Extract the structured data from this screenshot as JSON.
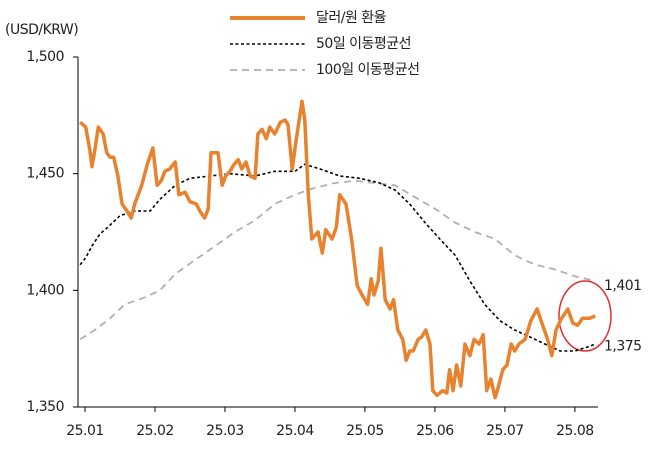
{
  "chart_data": {
    "type": "line",
    "y_label": "(USD/KRW)",
    "legend": "top",
    "xlim": [
      -0.1,
      7.33
    ],
    "ylim": [
      1350,
      1500
    ],
    "yticks": [
      {
        "value": 1350,
        "label": "1,350"
      },
      {
        "value": 1400,
        "label": "1,400"
      },
      {
        "value": 1450,
        "label": "1,450"
      },
      {
        "value": 1500,
        "label": "1,500"
      }
    ],
    "xticks": [
      {
        "value": 0,
        "label": "25.01"
      },
      {
        "value": 1,
        "label": "25.02"
      },
      {
        "value": 2,
        "label": "25.03"
      },
      {
        "value": 3,
        "label": "25.04"
      },
      {
        "value": 4,
        "label": "25.05"
      },
      {
        "value": 5,
        "label": "25.06"
      },
      {
        "value": 6,
        "label": "25.07"
      },
      {
        "value": 7,
        "label": "25.08"
      }
    ],
    "series": [
      {
        "name": "달러/원 환율",
        "color": "#e8822e",
        "line_style": "solid",
        "x": [
          -0.07,
          0.01,
          0.07,
          0.1,
          0.14,
          0.19,
          0.26,
          0.31,
          0.36,
          0.41,
          0.47,
          0.53,
          0.6,
          0.66,
          0.71,
          0.81,
          0.89,
          0.97,
          1.03,
          1.09,
          1.14,
          1.21,
          1.29,
          1.34,
          1.43,
          1.5,
          1.59,
          1.64,
          1.71,
          1.76,
          1.8,
          1.9,
          1.96,
          2.01,
          2.07,
          2.13,
          2.19,
          2.24,
          2.3,
          2.36,
          2.43,
          2.47,
          2.53,
          2.59,
          2.64,
          2.71,
          2.79,
          2.86,
          2.9,
          2.96,
          3.01,
          3.1,
          3.14,
          3.19,
          3.24,
          3.33,
          3.39,
          3.44,
          3.53,
          3.59,
          3.64,
          3.73,
          3.81,
          3.89,
          3.96,
          4.04,
          4.09,
          4.13,
          4.19,
          4.23,
          4.29,
          4.36,
          4.41,
          4.47,
          4.54,
          4.59,
          4.64,
          4.69,
          4.76,
          4.81,
          4.87,
          4.93,
          4.97,
          5.03,
          5.11,
          5.17,
          5.21,
          5.26,
          5.31,
          5.37,
          5.43,
          5.5,
          5.56,
          5.63,
          5.69,
          5.74,
          5.8,
          5.86,
          5.91,
          5.97,
          6.03,
          6.09,
          6.14,
          6.2,
          6.29,
          6.37,
          6.46,
          6.54,
          6.61,
          6.67,
          6.73,
          6.81,
          6.9,
          6.97,
          7.04,
          7.11,
          7.21,
          7.29
        ],
        "values": [
          1472,
          1470,
          1460,
          1453,
          1460,
          1470,
          1467,
          1459,
          1457,
          1457,
          1449,
          1437,
          1434,
          1431,
          1437,
          1445,
          1454,
          1461,
          1445,
          1447,
          1451,
          1452,
          1455,
          1441,
          1442,
          1438,
          1437,
          1434,
          1431,
          1435,
          1459,
          1459,
          1445,
          1449,
          1451,
          1454,
          1456,
          1452,
          1455,
          1449,
          1448,
          1467,
          1469,
          1465,
          1470,
          1467,
          1472,
          1473,
          1471,
          1452,
          1463,
          1481,
          1473,
          1441,
          1422,
          1425,
          1416,
          1426,
          1422,
          1427,
          1441,
          1437,
          1422,
          1402,
          1398,
          1394,
          1405,
          1398,
          1404,
          1418,
          1396,
          1392,
          1396,
          1383,
          1379,
          1370,
          1374,
          1374,
          1379,
          1380,
          1383,
          1377,
          1357,
          1355,
          1357,
          1356,
          1366,
          1357,
          1368,
          1359,
          1377,
          1372,
          1379,
          1377,
          1381,
          1357,
          1362,
          1354,
          1359,
          1366,
          1368,
          1377,
          1374,
          1377,
          1379,
          1387,
          1392,
          1385,
          1379,
          1372,
          1383,
          1388,
          1392,
          1386,
          1385,
          1388,
          1388,
          1389
        ]
      },
      {
        "name": "50일 이동평균선",
        "color": "#000000",
        "line_style": "dashed",
        "x": [
          -0.07,
          0.01,
          0.1,
          0.21,
          0.36,
          0.5,
          0.71,
          0.93,
          1.07,
          1.29,
          1.5,
          1.79,
          2.07,
          2.43,
          2.71,
          3.0,
          3.14,
          3.36,
          3.64,
          3.93,
          4.21,
          4.43,
          4.64,
          4.86,
          5.07,
          5.29,
          5.5,
          5.71,
          5.93,
          6.14,
          6.36,
          6.57,
          6.79,
          7.0,
          7.21,
          7.29
        ],
        "values": [
          1411,
          1414,
          1419,
          1424,
          1428,
          1432,
          1434,
          1434,
          1439,
          1445,
          1448,
          1449,
          1450,
          1449,
          1451,
          1451,
          1454,
          1452,
          1449,
          1448,
          1446,
          1443,
          1437,
          1429,
          1422,
          1415,
          1404,
          1394,
          1387,
          1383,
          1380,
          1377,
          1374,
          1374,
          1376,
          1377
        ]
      },
      {
        "name": "100일 이동평균선",
        "color": "#b0b0b0",
        "line_style": "dashed",
        "x": [
          -0.07,
          0.14,
          0.36,
          0.57,
          0.86,
          1.07,
          1.29,
          1.57,
          1.86,
          2.14,
          2.43,
          2.71,
          3.0,
          3.29,
          3.57,
          3.86,
          4.14,
          4.43,
          4.71,
          5.0,
          5.29,
          5.57,
          5.86,
          6.14,
          6.43,
          6.71,
          7.0,
          7.29
        ],
        "values": [
          1379,
          1383,
          1388,
          1394,
          1397,
          1400,
          1407,
          1413,
          1419,
          1425,
          1430,
          1437,
          1441,
          1444,
          1446,
          1447,
          1446,
          1445,
          1440,
          1435,
          1429,
          1425,
          1422,
          1415,
          1411,
          1409,
          1406,
          1404
        ]
      }
    ],
    "annotations": [
      {
        "value": 1401,
        "label": "1,401"
      },
      {
        "value": 1375,
        "label": "1,375"
      }
    ]
  }
}
